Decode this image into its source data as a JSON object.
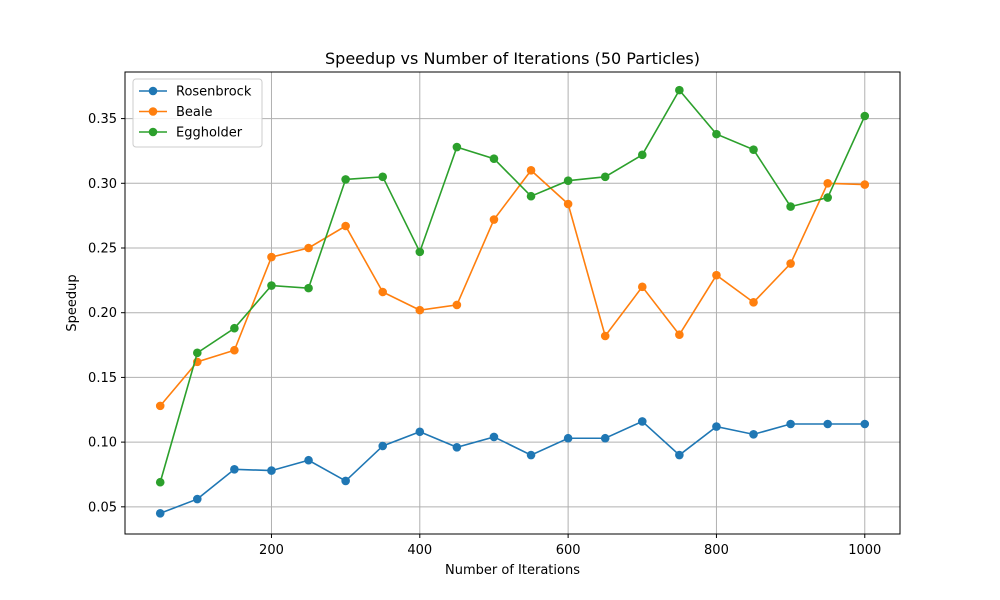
{
  "chart_data": {
    "type": "line",
    "title": "Speedup vs Number of Iterations (50 Particles)",
    "xlabel": "Number of Iterations",
    "ylabel": "Speedup",
    "x": [
      50,
      100,
      150,
      200,
      250,
      300,
      350,
      400,
      450,
      500,
      550,
      600,
      650,
      700,
      750,
      800,
      850,
      900,
      950,
      1000
    ],
    "xlim": [
      2.5,
      1047.5
    ],
    "ylim": [
      0.029,
      0.386
    ],
    "xticks": [
      200,
      400,
      600,
      800,
      1000
    ],
    "yticks": [
      0.05,
      0.1,
      0.15,
      0.2,
      0.25,
      0.3,
      0.35
    ],
    "xtick_labels": [
      "200",
      "400",
      "600",
      "800",
      "1000"
    ],
    "ytick_labels": [
      "0.05",
      "0.10",
      "0.15",
      "0.20",
      "0.25",
      "0.30",
      "0.35"
    ],
    "grid": true,
    "legend_position": "top-left",
    "series": [
      {
        "name": "Rosenbrock",
        "color": "#1f77b4",
        "values": [
          0.045,
          0.056,
          0.079,
          0.078,
          0.086,
          0.07,
          0.097,
          0.108,
          0.096,
          0.104,
          0.09,
          0.103,
          0.103,
          0.116,
          0.09,
          0.112,
          0.106,
          0.114,
          0.114,
          0.114
        ]
      },
      {
        "name": "Beale",
        "color": "#ff7f0e",
        "values": [
          0.128,
          0.162,
          0.171,
          0.243,
          0.25,
          0.267,
          0.216,
          0.202,
          0.206,
          0.272,
          0.31,
          0.284,
          0.182,
          0.22,
          0.183,
          0.229,
          0.208,
          0.238,
          0.3,
          0.299
        ]
      },
      {
        "name": "Eggholder",
        "color": "#2ca02c",
        "values": [
          0.069,
          0.169,
          0.188,
          0.221,
          0.219,
          0.303,
          0.305,
          0.247,
          0.328,
          0.319,
          0.29,
          0.302,
          0.305,
          0.322,
          0.372,
          0.338,
          0.326,
          0.282,
          0.289,
          0.352
        ]
      }
    ]
  }
}
